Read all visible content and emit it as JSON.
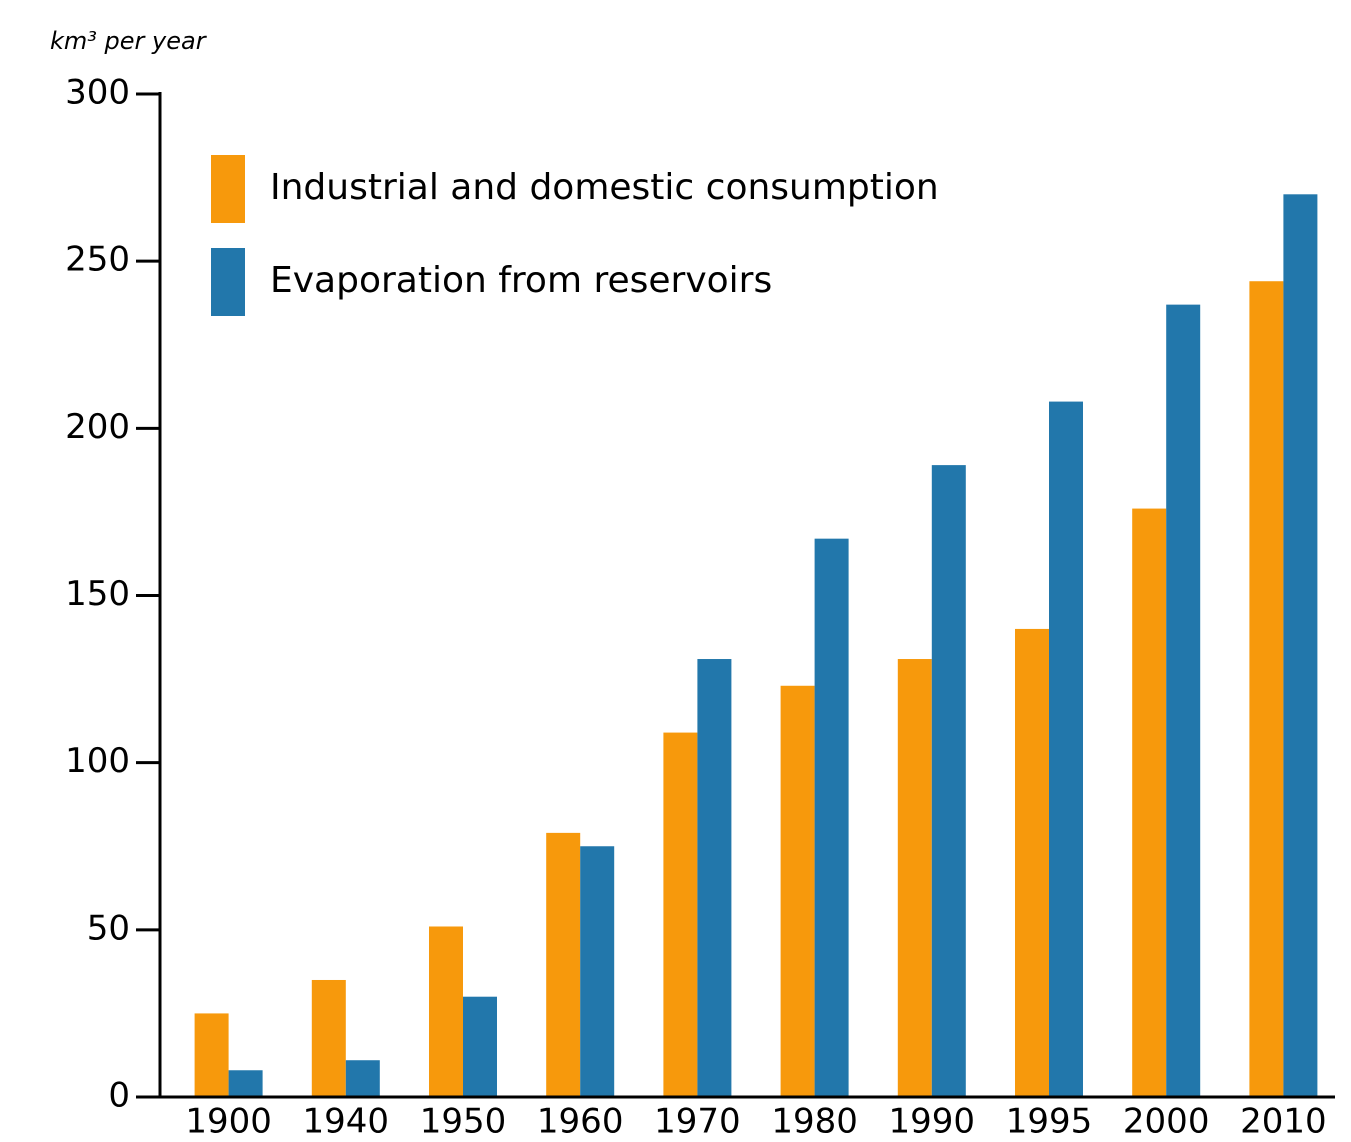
{
  "chart_data": {
    "type": "bar",
    "y_label": "km³ per year",
    "categories": [
      "1900",
      "1940",
      "1950",
      "1960",
      "1970",
      "1980",
      "1990",
      "1995",
      "2000",
      "2010"
    ],
    "series": [
      {
        "name": "Industrial and domestic consumption",
        "color": "#f7990c",
        "values": [
          25,
          35,
          51,
          79,
          109,
          123,
          131,
          140,
          176,
          244
        ]
      },
      {
        "name": "Evaporation from reservoirs",
        "color": "#2277ab",
        "values": [
          8,
          11,
          30,
          75,
          131,
          167,
          189,
          208,
          237,
          270
        ]
      }
    ],
    "ylim": [
      0,
      300
    ],
    "yticks": [
      0,
      50,
      100,
      150,
      200,
      250,
      300
    ],
    "grid": false,
    "legend": "top-left"
  }
}
